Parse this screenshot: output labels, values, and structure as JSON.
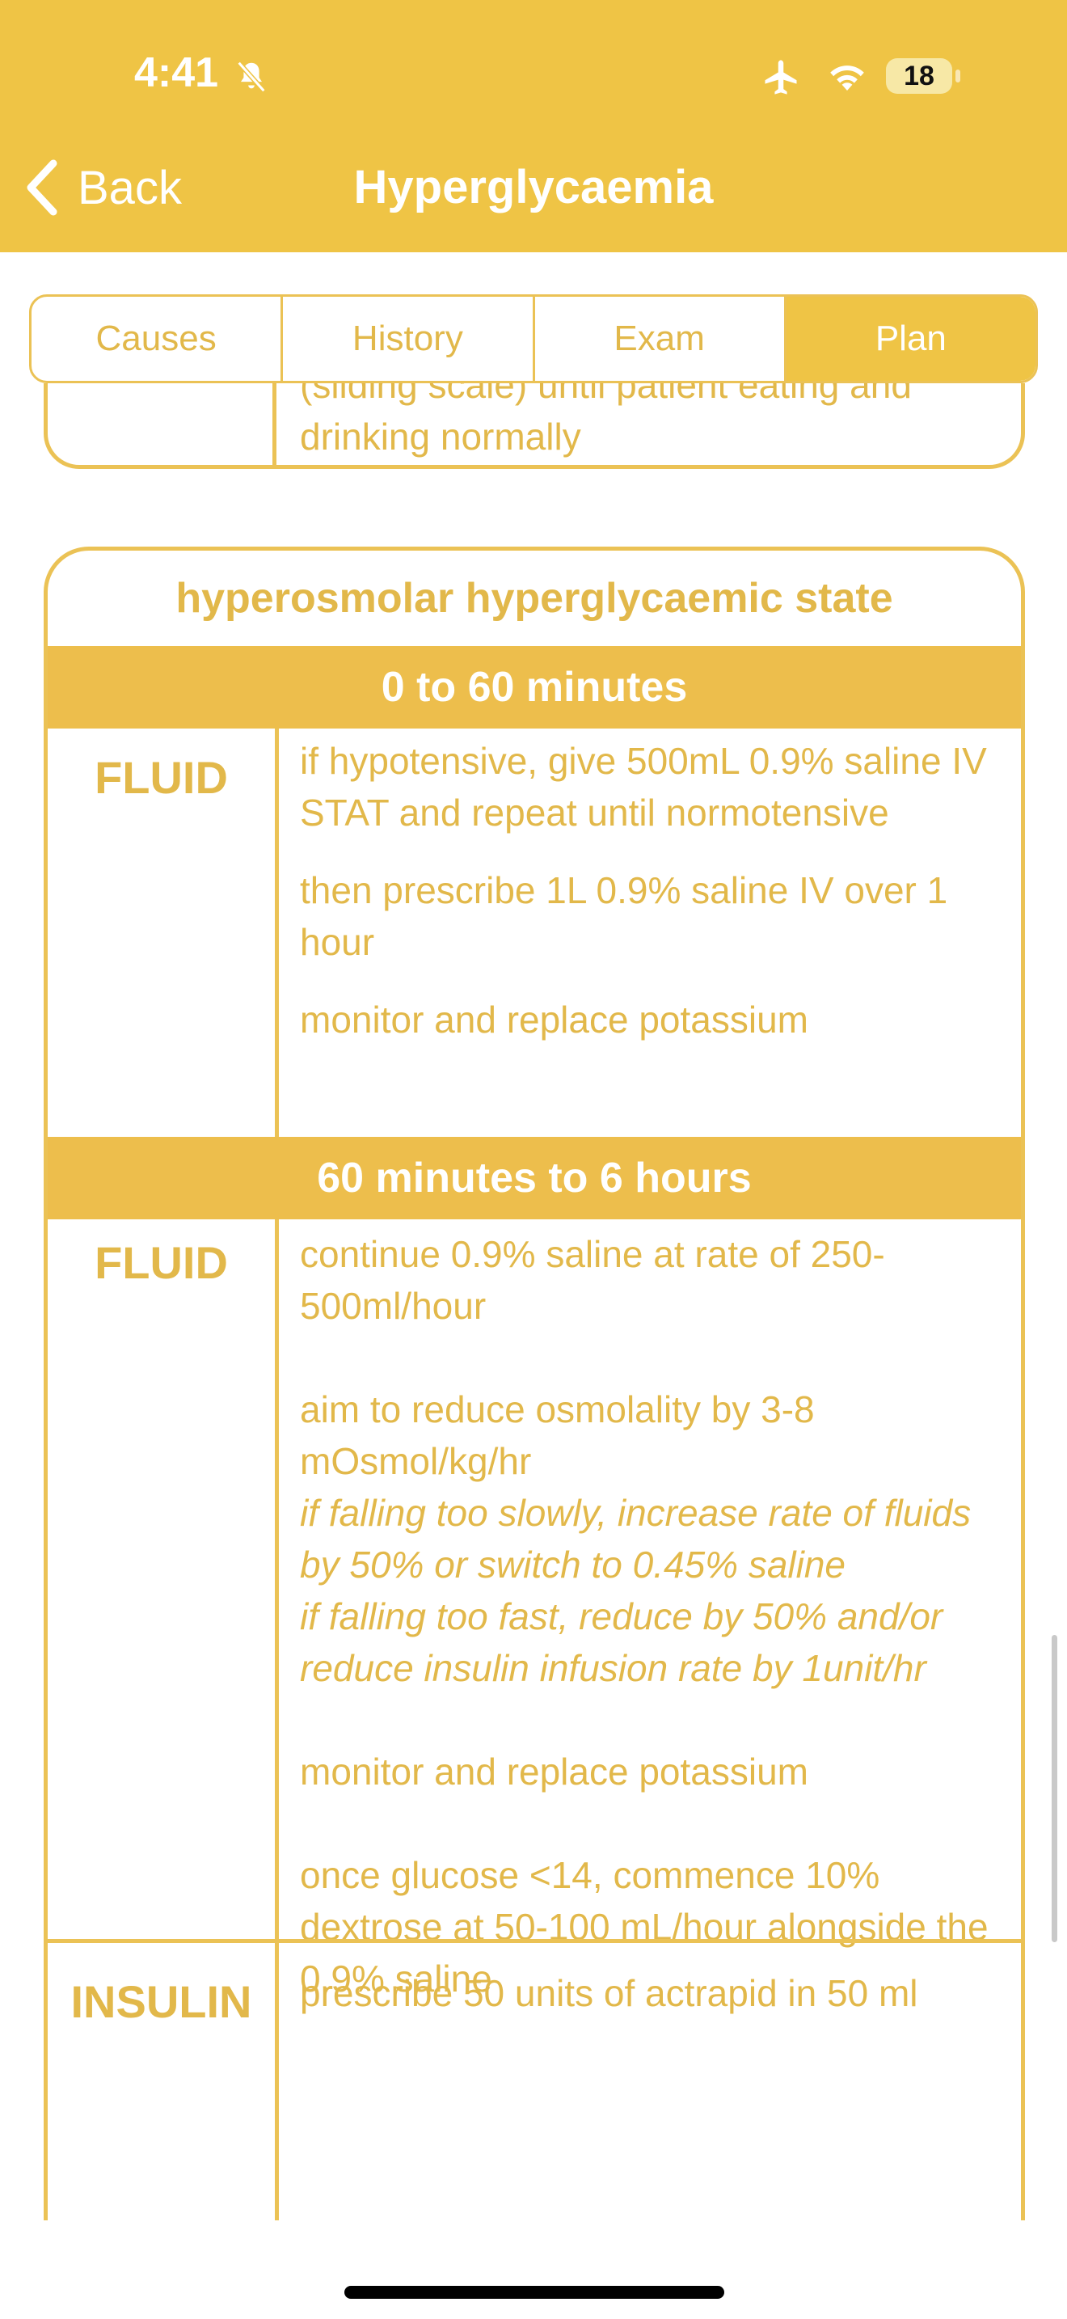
{
  "status_bar": {
    "time": "4:41",
    "battery": "18",
    "icons": [
      "bell-slash-icon",
      "airplane-icon",
      "wifi-icon",
      "battery-icon"
    ]
  },
  "nav": {
    "back_label": "Back",
    "title": "Hyperglycaemia"
  },
  "tabs": [
    {
      "label": "Causes",
      "active": false
    },
    {
      "label": "History",
      "active": false
    },
    {
      "label": "Exam",
      "active": false
    },
    {
      "label": "Plan",
      "active": true
    }
  ],
  "previous_card": {
    "text": "(sliding scale) until patient eating and drinking normally"
  },
  "card": {
    "title": "hyperosmolar hyperglycaemic state",
    "sections": [
      {
        "band": "0 to 60 minutes",
        "label": "FLUID",
        "items": [
          {
            "text": "if hypotensive, give 500mL 0.9% saline IV STAT and repeat until normotensive",
            "italic": false
          },
          {
            "text": "then prescribe 1L 0.9% saline IV over 1 hour",
            "italic": false
          },
          {
            "text": "monitor and replace potassium",
            "italic": false
          }
        ]
      },
      {
        "band": "60 minutes to 6 hours",
        "label": "FLUID",
        "items": [
          {
            "text": "continue 0.9% saline at rate of 250-500ml/hour",
            "italic": false
          },
          {
            "text": "aim to reduce osmolality by 3-8 mOsmol/kg/hr",
            "italic": false
          },
          {
            "text": "if falling too slowly, increase rate of fluids by 50% or switch to 0.45% saline",
            "italic": true
          },
          {
            "text": "if falling too fast, reduce by 50% and/or reduce insulin infusion rate by 1unit/hr",
            "italic": true
          },
          {
            "text": "monitor and replace potassium",
            "italic": false
          },
          {
            "text": "once glucose <14, commence 10% dextrose at 50-100 mL/hour alongside the 0.9% saline",
            "italic": false
          }
        ]
      },
      {
        "label": "INSULIN",
        "items": [
          {
            "text": "prescribe 50 units of actrapid in 50 ml",
            "italic": false
          }
        ]
      }
    ]
  },
  "colors": {
    "accent": "#EFC445",
    "band": "#EDBE4C",
    "text": "#E2B84A"
  }
}
